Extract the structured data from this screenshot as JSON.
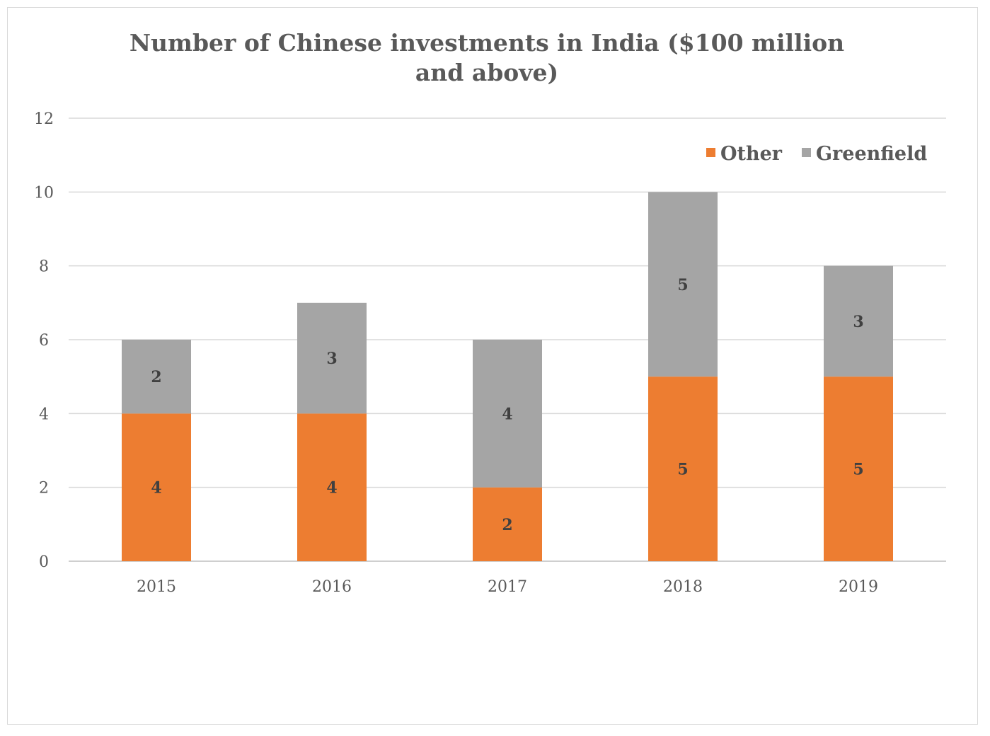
{
  "chart_data": {
    "type": "bar",
    "stacked": true,
    "title": "Number of Chinese investments in India ($100 million and above)",
    "title_lines": [
      "Number of Chinese investments in India ($100 million",
      "and above)"
    ],
    "categories": [
      "2015",
      "2016",
      "2017",
      "2018",
      "2019"
    ],
    "series": [
      {
        "name": "Other",
        "values": [
          4,
          4,
          2,
          5,
          5
        ],
        "color": "#ED7D31"
      },
      {
        "name": "Greenfield",
        "values": [
          2,
          3,
          4,
          5,
          3
        ],
        "color": "#A5A5A5"
      }
    ],
    "ylim": [
      0,
      12
    ],
    "yticks": [
      0,
      2,
      4,
      6,
      8,
      10,
      12
    ],
    "grid": true,
    "legend": "top-right",
    "data_labels": true
  }
}
